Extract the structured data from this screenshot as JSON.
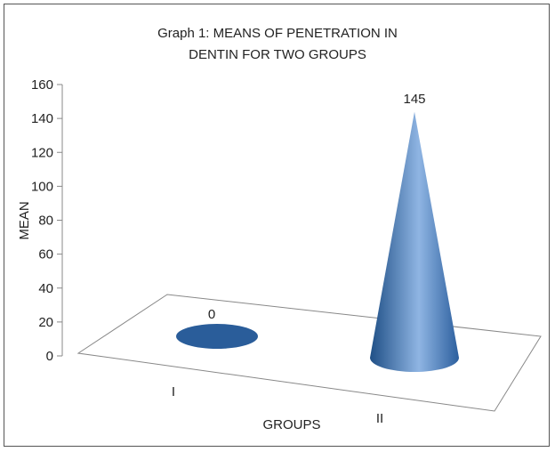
{
  "chart_data": {
    "type": "bar",
    "style": "3d-cone",
    "title_line1": "Graph 1: MEANS OF PENETRATION IN",
    "title_line2": "DENTIN FOR TWO  GROUPS",
    "xlabel": "GROUPS",
    "ylabel": "MEAN",
    "categories": [
      "I",
      "II"
    ],
    "values": [
      0,
      145
    ],
    "data_labels": [
      "0",
      "145"
    ],
    "yticks": [
      0,
      20,
      40,
      60,
      80,
      100,
      120,
      140,
      160
    ],
    "ylim": [
      0,
      160
    ],
    "grid": false,
    "legend": "none",
    "colors": {
      "cone_dark": "#1f4f86",
      "cone_mid": "#3a74b8",
      "cone_light": "#8fb5e3",
      "disc": "#2a5d9a"
    }
  }
}
